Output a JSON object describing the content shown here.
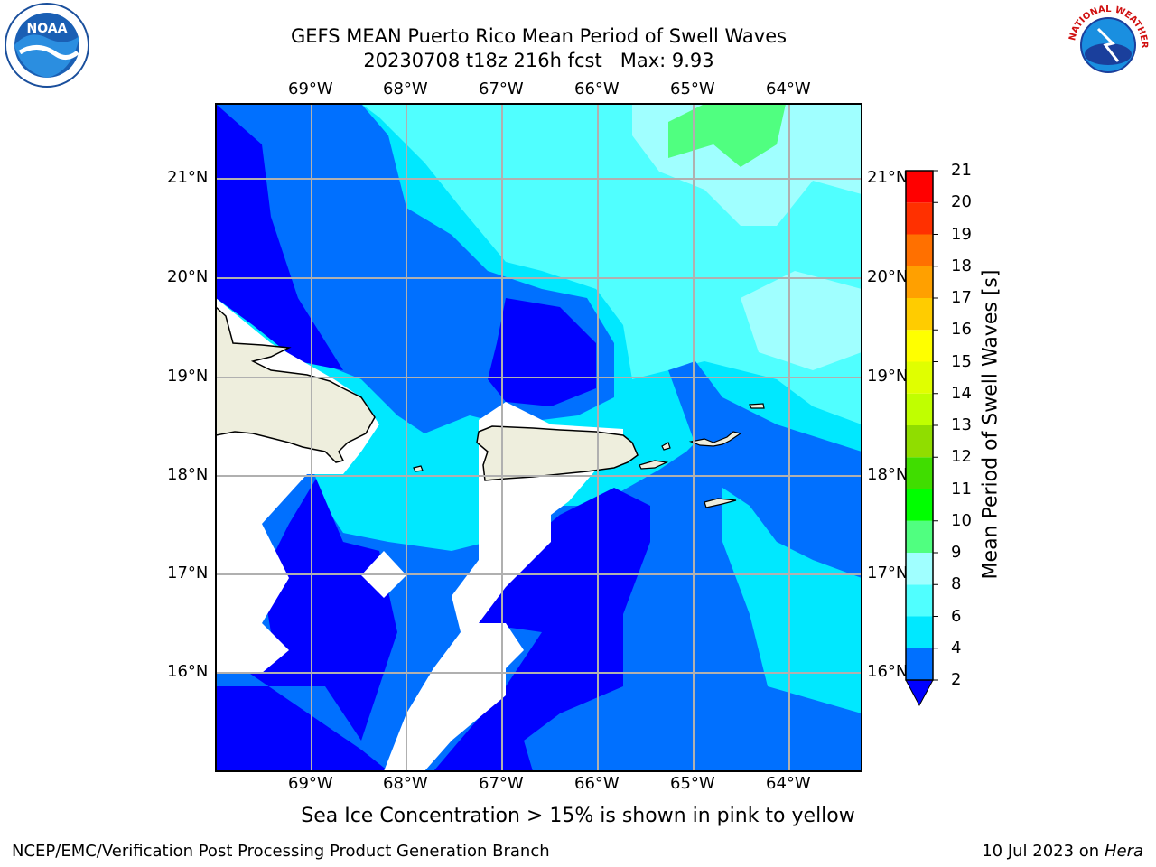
{
  "header": {
    "title_line1": "GEFS MEAN Puerto Rico Mean Period of Swell Waves",
    "title_line2": "20230708 t18z 216h fcst   Max: 9.93"
  },
  "map": {
    "lon_ticks": [
      "69°W",
      "68°W",
      "67°W",
      "66°W",
      "65°W",
      "64°W"
    ],
    "lat_ticks": [
      "21°N",
      "20°N",
      "19°N",
      "18°N",
      "17°N",
      "16°N"
    ],
    "land_color": "#eeeedd",
    "no_data_color": "#ffffff"
  },
  "colorbar": {
    "label": "Mean Period of Swell Waves [s]",
    "ticks": [
      "2",
      "4",
      "6",
      "8",
      "9",
      "10",
      "11",
      "12",
      "13",
      "14",
      "15",
      "16",
      "17",
      "18",
      "19",
      "20",
      "21"
    ],
    "colors": [
      "#0000ff",
      "#0070ff",
      "#00e8ff",
      "#50ffff",
      "#a0ffff",
      "#50ff80",
      "#00ff00",
      "#40dd00",
      "#90dd00",
      "#c0ff00",
      "#e0ff00",
      "#ffff00",
      "#ffcc00",
      "#ffa000",
      "#ff7000",
      "#ff3000",
      "#ff0000"
    ]
  },
  "footer": {
    "note": "Sea Ice Concentration > 15% is shown in pink to yellow",
    "credit": "NCEP/EMC/Verification Post Processing Product Generation Branch",
    "date_prefix": "10 Jul 2023 on ",
    "date_host": "Hera"
  },
  "logos": {
    "noaa_text": "NOAA",
    "nws_text": "NATIONAL WEATHER SERVICE"
  }
}
